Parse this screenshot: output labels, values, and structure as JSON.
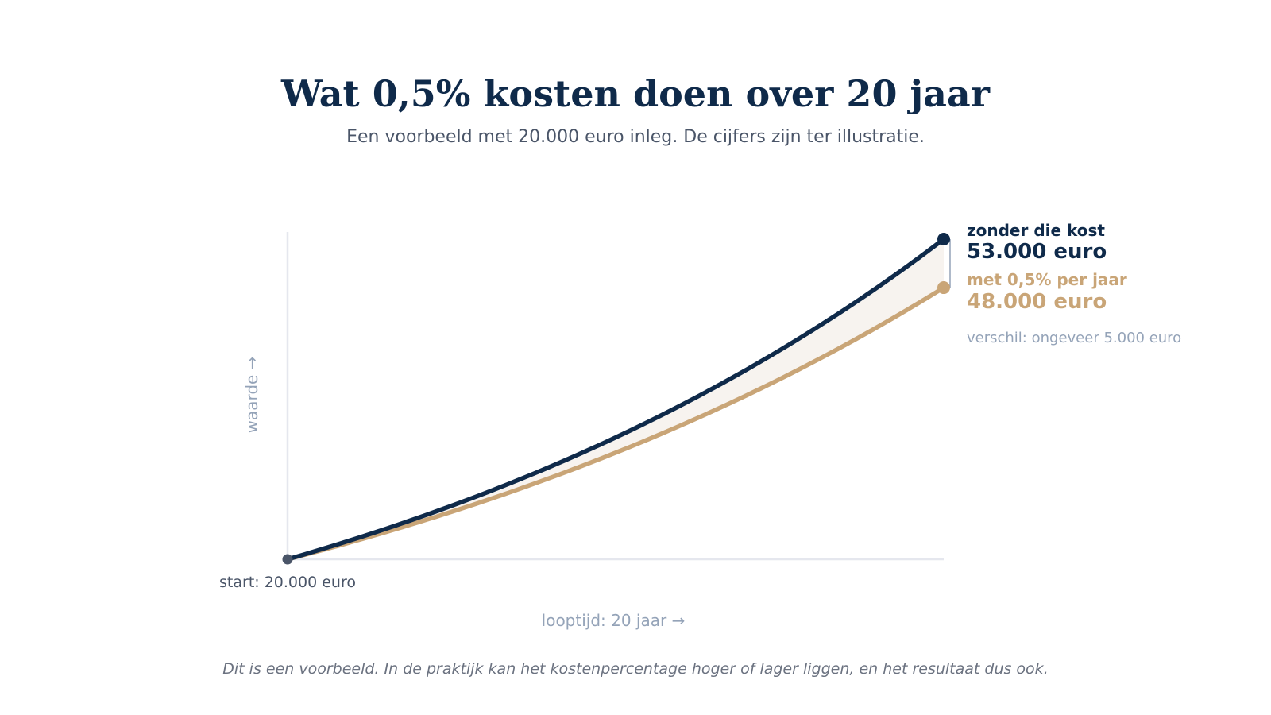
{
  "header": {
    "title": "Wat 0,5% kosten doen over 20 jaar",
    "subtitle": "Een voorbeeld met 20.000 euro inleg. De cijfers zijn ter illustratie."
  },
  "chart_data": {
    "type": "line",
    "x_start": 0,
    "x_end": 20,
    "ylim": [
      20000,
      53000
    ],
    "ylabel": "waarde →",
    "xlabel": "looptijd: 20 jaar →",
    "start_label": "start: 20.000 euro",
    "start_value": 20000,
    "grid": false,
    "series": [
      {
        "key": "without",
        "name": "zonder die kost",
        "end_value": 53000,
        "end_label": "53.000 euro",
        "color": "#0f2a4a"
      },
      {
        "key": "with",
        "name": "met 0,5% per jaar",
        "end_value": 48000,
        "end_label": "48.000 euro",
        "color": "#c9a577"
      }
    ],
    "difference_label": "verschil: ongeveer 5.000 euro"
  },
  "footnote": "Dit is een voorbeeld. In de praktijk kan het kostenpercentage hoger of lager liggen, en het resultaat dus ook.",
  "colors": {
    "navy": "#0f2a4a",
    "gold": "#c9a577",
    "muted": "#94a3b8",
    "axis": "#e5e7ee",
    "band": "#f7f3ef",
    "start_dot": "#4a5568"
  }
}
